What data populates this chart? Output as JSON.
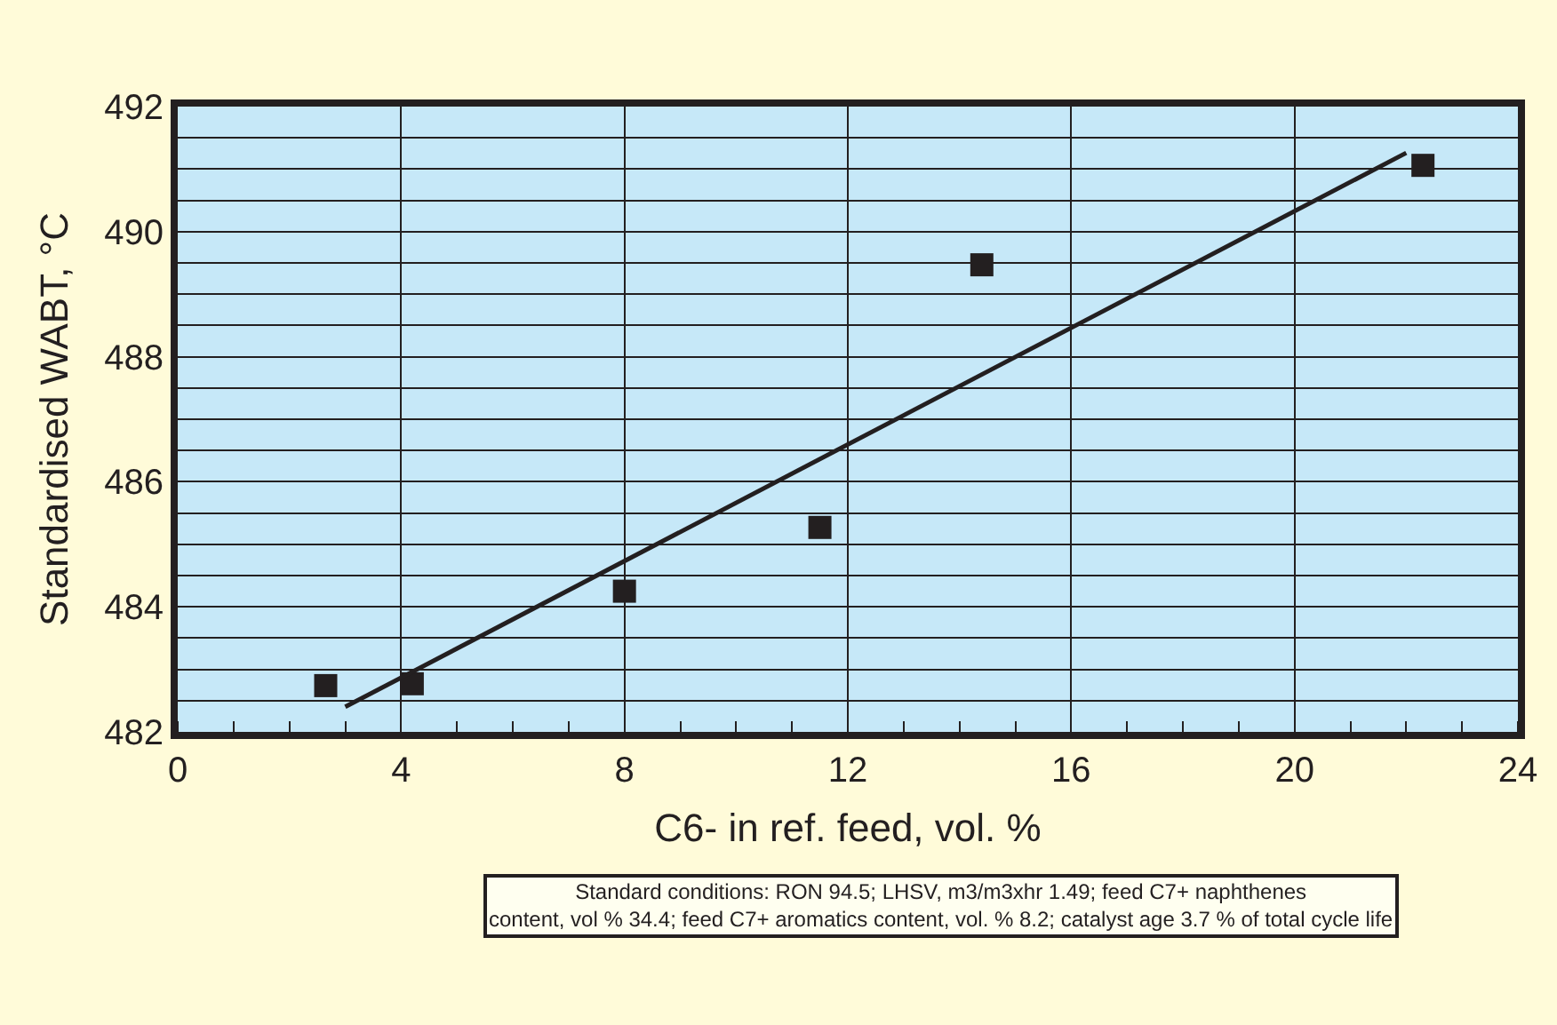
{
  "chart_data": {
    "type": "scatter",
    "xlabel": "C6- in ref. feed, vol. %",
    "ylabel": "Standardised WABT, °C",
    "annotations": [
      "Standard conditions: RON 94.5; LHSV, m3/m3xhr 1.49; feed C7+ naphthenes\ncontent, vol % 34.4; feed C7+ aromatics content, vol. % 8.2; catalyst age 3.7 % of total cycle life"
    ],
    "series": [
      {
        "color": "#231f20",
        "marker": "square",
        "x": [
          2.65,
          4.2,
          8.0,
          11.5,
          14.4,
          22.3
        ],
        "values": [
          482.74,
          482.77,
          484.25,
          485.27,
          489.47,
          491.06
        ]
      },
      {
        "type": "line",
        "color": "#231f20",
        "line_style": "solid",
        "marker": "none",
        "x": [
          3.0,
          22.0
        ],
        "values": [
          482.4,
          491.26
        ]
      }
    ],
    "xlim": [
      0,
      24
    ],
    "xticks": [
      0,
      4,
      8,
      12,
      16,
      20,
      24
    ],
    "ylim": [
      482,
      492
    ],
    "yticks": [
      482,
      484,
      486,
      488,
      490,
      492
    ],
    "grid": true,
    "legend": false
  }
}
